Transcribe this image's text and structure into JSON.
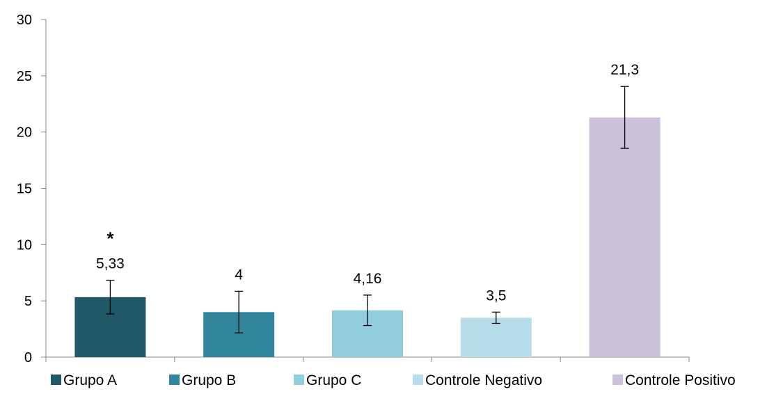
{
  "chart_data": {
    "type": "bar",
    "categories": [
      "Grupo A",
      "Grupo B",
      "Grupo C",
      "Controle Negativo",
      "Controle Positivo"
    ],
    "series": [
      {
        "name": "Grupo A",
        "value": 5.33,
        "error": 1.5,
        "label": "5,33",
        "annotation": "*",
        "color": "#215968"
      },
      {
        "name": "Grupo B",
        "value": 4,
        "error": 1.85,
        "label": "4",
        "annotation": "",
        "color": "#31859C"
      },
      {
        "name": "Grupo C",
        "value": 4.16,
        "error": 1.35,
        "label": "4,16",
        "annotation": "",
        "color": "#92CDDC"
      },
      {
        "name": "Controle Negativo",
        "value": 3.5,
        "error": 0.5,
        "label": "3,5",
        "annotation": "",
        "color": "#B7DEE8"
      },
      {
        "name": "Controle Positivo",
        "value": 21.3,
        "error": 2.75,
        "label": "21,3",
        "annotation": "",
        "color": "#CCC1DA"
      }
    ],
    "ylim": [
      0,
      30
    ],
    "yticks": [
      0,
      5,
      10,
      15,
      20,
      25,
      30
    ],
    "title": "",
    "xlabel": "",
    "ylabel": "",
    "grid": false,
    "legend_position": "bottom",
    "axis_color": "#868686"
  }
}
